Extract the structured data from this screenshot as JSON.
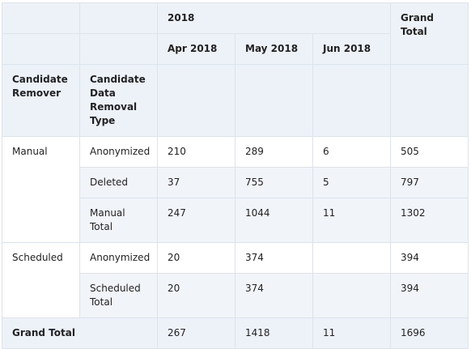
{
  "header": {
    "year": "2018",
    "grand_total": "Grand Total",
    "months": [
      "Apr 2018",
      "May 2018",
      "Jun 2018"
    ],
    "col_remover": "Candidate Remover",
    "col_type": "Candidate Data Removal Type"
  },
  "rows": {
    "manual": {
      "remover": "Manual",
      "anonymized": {
        "type": "Anonymized",
        "apr": "210",
        "may": "289",
        "jun": "6",
        "total": "505"
      },
      "deleted": {
        "type": "Deleted",
        "apr": "37",
        "may": "755",
        "jun": "5",
        "total": "797"
      },
      "subtotal": {
        "type": "Manual Total",
        "apr": "247",
        "may": "1044",
        "jun": "11",
        "total": "1302"
      }
    },
    "scheduled": {
      "remover": "Scheduled",
      "anonymized": {
        "type": "Anonymized",
        "apr": "20",
        "may": "374",
        "jun": "",
        "total": "394"
      },
      "subtotal": {
        "type": "Scheduled Total",
        "apr": "20",
        "may": "374",
        "jun": "",
        "total": "394"
      }
    },
    "grand_total": {
      "label": "Grand Total",
      "apr": "267",
      "may": "1418",
      "jun": "11",
      "total": "1696"
    }
  }
}
